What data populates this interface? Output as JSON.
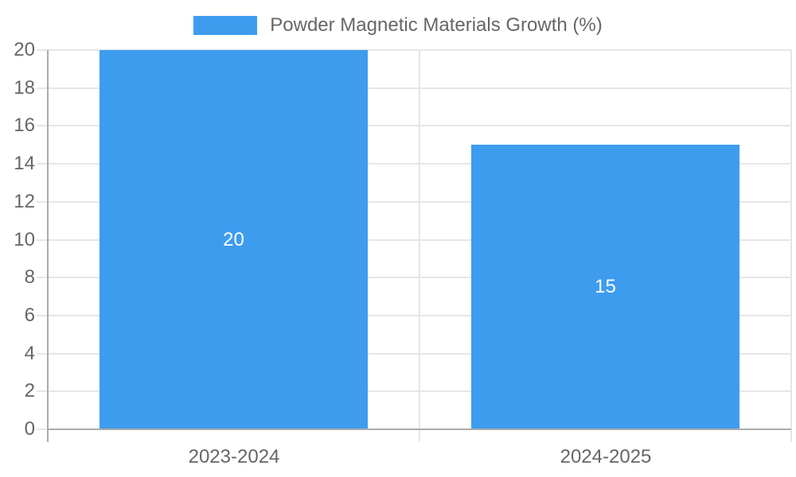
{
  "chart_data": {
    "type": "bar",
    "title": "",
    "legend": {
      "label": "Powder Magnetic Materials Growth (%)",
      "position": "top"
    },
    "categories": [
      "2023-2024",
      "2024-2025"
    ],
    "series": [
      {
        "name": "Powder Magnetic Materials Growth (%)",
        "values": [
          20,
          15
        ]
      }
    ],
    "data_labels": [
      "20",
      "15"
    ],
    "ylim": [
      0,
      20
    ],
    "ytick_step": 2,
    "grid": true,
    "colors": {
      "bar": "#3E9CEF",
      "data_label": "#FFFFFF",
      "axis_line": "#ABABAB",
      "grid_line": "#E6E6E6",
      "tick_label": "#666666",
      "legend_label": "#666666",
      "background": "#FFFFFF"
    }
  }
}
